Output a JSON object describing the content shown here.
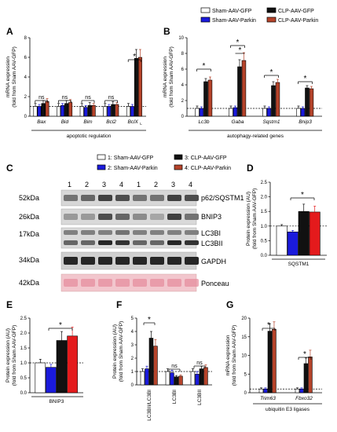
{
  "legend_top": [
    "Sham-AAV-GFP",
    "Sham-AAV-Parkin",
    "CLP-AAV-GFP",
    "CLP-AAV-Parkin"
  ],
  "colors": {
    "sham_gfp": "#ffffff",
    "sham_parkin": "#1a1adc",
    "clp_gfp": "#111111",
    "clp_parkin": "#b5432a",
    "red": "#e41a1c"
  },
  "panels": {
    "A": "A",
    "B": "B",
    "C": "C",
    "D": "D",
    "E": "E",
    "F": "F",
    "G": "G"
  },
  "ylabel_line1": "mRNA expression",
  "ylabel_line2": "(fold from Sham AAV-GFP)",
  "protein_ylabel_line1": "Protein expression (AU)",
  "protein_ylabel_line2": "(fold from Sham AAV-GFP)",
  "A": {
    "ticks": [
      "0",
      "2",
      "4",
      "6",
      "8"
    ],
    "genes": [
      "Bax",
      "Bid",
      "Bim",
      "Bcl2",
      "BclX"
    ],
    "subscript": "L",
    "ns": [
      "ns",
      "ns",
      "ns",
      "ns"
    ],
    "star": "*",
    "caption": "apoptotic regulation"
  },
  "B": {
    "ticks": [
      "0",
      "2",
      "4",
      "6",
      "8",
      "10"
    ],
    "genes": [
      "Lc3b",
      "Gaba",
      "Sqstm1",
      "Bnip3"
    ],
    "star": "*",
    "caption": "autophagy-related genes"
  },
  "C": {
    "legend": [
      "1: Sham-AAV-GFP",
      "2: Sham-AAV-Parkin",
      "3: CLP-AAV-GFP",
      "4: CLP-AAV-Parkin"
    ],
    "lanes": [
      "1",
      "2",
      "3",
      "4",
      "1",
      "2",
      "3",
      "4"
    ],
    "mw": [
      "52kDa",
      "26kDa",
      "17kDa",
      "34kDa",
      "42kDa"
    ],
    "bands": [
      "p62/SQSTM1",
      "BNIP3",
      "LC3BI",
      "LC3BII",
      "GAPDH",
      "Ponceau"
    ]
  },
  "D": {
    "ticks": [
      "0.0",
      "0.5",
      "1.0",
      "1.5",
      "2.0",
      "2.5"
    ],
    "label": "SQSTM1",
    "star": "*"
  },
  "E": {
    "ticks": [
      "0.0",
      "0.5",
      "1.0",
      "1.5",
      "2.0",
      "2.5"
    ],
    "label": "BNIP3",
    "star": "*"
  },
  "F": {
    "ticks": [
      "0",
      "1",
      "2",
      "3",
      "4",
      "5"
    ],
    "labels": [
      "LC3BII/LC3BI",
      "LC3BI",
      "LC3BII"
    ],
    "star": "*",
    "ns": [
      "ns",
      "ns"
    ]
  },
  "G": {
    "ticks": [
      "0",
      "5",
      "10",
      "15",
      "20"
    ],
    "genes": [
      "Trim63",
      "Fbxo32"
    ],
    "star": "*",
    "caption": "ubiquitin E3 ligases"
  },
  "chart_data": [
    {
      "panel": "A",
      "type": "bar",
      "categories": [
        "Bax",
        "Bid",
        "Bim",
        "Bcl2",
        "BclXL"
      ],
      "ylim": [
        0,
        8
      ],
      "series": [
        {
          "name": "Sham-AAV-GFP",
          "values": [
            1.0,
            1.0,
            1.0,
            1.0,
            1.0
          ],
          "errors": [
            0.3,
            0.3,
            0.3,
            0.3,
            0.3
          ]
        },
        {
          "name": "Sham-AAV-Parkin",
          "values": [
            1.0,
            1.1,
            0.9,
            1.0,
            1.0
          ],
          "errors": [
            0.2,
            0.2,
            0.2,
            0.2,
            0.2
          ]
        },
        {
          "name": "CLP-AAV-GFP",
          "values": [
            1.3,
            1.3,
            1.1,
            1.2,
            5.9
          ],
          "errors": [
            0.3,
            0.3,
            0.3,
            0.3,
            0.9
          ]
        },
        {
          "name": "CLP-AAV-Parkin",
          "values": [
            1.5,
            1.4,
            1.1,
            1.2,
            6.0
          ],
          "errors": [
            0.3,
            0.3,
            0.2,
            0.2,
            0.8
          ]
        }
      ]
    },
    {
      "panel": "B",
      "type": "bar",
      "categories": [
        "Lc3b",
        "Gaba",
        "Sqstm1",
        "Bnip3"
      ],
      "ylim": [
        0,
        10
      ],
      "series": [
        {
          "name": "Sham-AAV-GFP",
          "values": [
            1.0,
            1.0,
            1.0,
            1.0
          ],
          "errors": [
            0.3,
            0.3,
            0.3,
            0.3
          ]
        },
        {
          "name": "Sham-AAV-Parkin",
          "values": [
            1.0,
            1.1,
            1.0,
            1.0
          ],
          "errors": [
            0.2,
            0.2,
            0.2,
            0.2
          ]
        },
        {
          "name": "CLP-AAV-GFP",
          "values": [
            4.4,
            6.3,
            3.9,
            3.6
          ],
          "errors": [
            0.4,
            0.9,
            0.5,
            0.3
          ]
        },
        {
          "name": "CLP-AAV-Parkin",
          "values": [
            4.6,
            7.1,
            4.3,
            3.5
          ],
          "errors": [
            0.4,
            1.0,
            0.4,
            0.3
          ]
        }
      ]
    },
    {
      "panel": "D",
      "type": "bar",
      "categories": [
        "SQSTM1"
      ],
      "ylim": [
        0,
        2.5
      ],
      "series": [
        {
          "name": "Sham-AAV-GFP",
          "values": [
            1.0
          ],
          "errors": [
            0.05
          ]
        },
        {
          "name": "Sham-AAV-Parkin",
          "values": [
            0.8
          ],
          "errors": [
            0.05
          ]
        },
        {
          "name": "CLP-AAV-GFP",
          "values": [
            1.5
          ],
          "errors": [
            0.25
          ]
        },
        {
          "name": "CLP-AAV-Parkin",
          "values": [
            1.48
          ],
          "errors": [
            0.2
          ]
        }
      ]
    },
    {
      "panel": "E",
      "type": "bar",
      "categories": [
        "BNIP3"
      ],
      "ylim": [
        0,
        2.5
      ],
      "series": [
        {
          "name": "Sham-AAV-GFP",
          "values": [
            1.0
          ],
          "errors": [
            0.12
          ]
        },
        {
          "name": "Sham-AAV-Parkin",
          "values": [
            0.85
          ],
          "errors": [
            0.1
          ]
        },
        {
          "name": "CLP-AAV-GFP",
          "values": [
            1.75
          ],
          "errors": [
            0.3
          ]
        },
        {
          "name": "CLP-AAV-Parkin",
          "values": [
            1.9
          ],
          "errors": [
            0.3
          ]
        }
      ]
    },
    {
      "panel": "F",
      "type": "bar",
      "categories": [
        "LC3BII/LC3BI",
        "LC3BI",
        "LC3BII"
      ],
      "ylim": [
        0,
        5
      ],
      "series": [
        {
          "name": "Sham-AAV-GFP",
          "values": [
            1.0,
            1.0,
            1.0
          ],
          "errors": [
            0.2,
            0.2,
            0.2
          ]
        },
        {
          "name": "Sham-AAV-Parkin",
          "values": [
            1.2,
            0.9,
            0.8
          ],
          "errors": [
            0.2,
            0.2,
            0.2
          ]
        },
        {
          "name": "CLP-AAV-GFP",
          "values": [
            3.5,
            0.6,
            1.2
          ],
          "errors": [
            0.5,
            0.1,
            0.2
          ]
        },
        {
          "name": "CLP-AAV-Parkin",
          "values": [
            2.9,
            0.65,
            1.3
          ],
          "errors": [
            0.5,
            0.1,
            0.2
          ]
        }
      ]
    },
    {
      "panel": "G",
      "type": "bar",
      "categories": [
        "Trim63",
        "Fbxo32"
      ],
      "ylim": [
        0,
        20
      ],
      "series": [
        {
          "name": "Sham-AAV-GFP",
          "values": [
            1.0,
            1.0
          ],
          "errors": [
            0.3,
            0.3
          ]
        },
        {
          "name": "Sham-AAV-Parkin",
          "values": [
            1.0,
            1.0
          ],
          "errors": [
            0.3,
            0.3
          ]
        },
        {
          "name": "CLP-AAV-GFP",
          "values": [
            16.5,
            7.8
          ],
          "errors": [
            2.0,
            1.5
          ]
        },
        {
          "name": "CLP-AAV-Parkin",
          "values": [
            17.0,
            9.6
          ],
          "errors": [
            2.0,
            1.8
          ]
        }
      ]
    }
  ]
}
